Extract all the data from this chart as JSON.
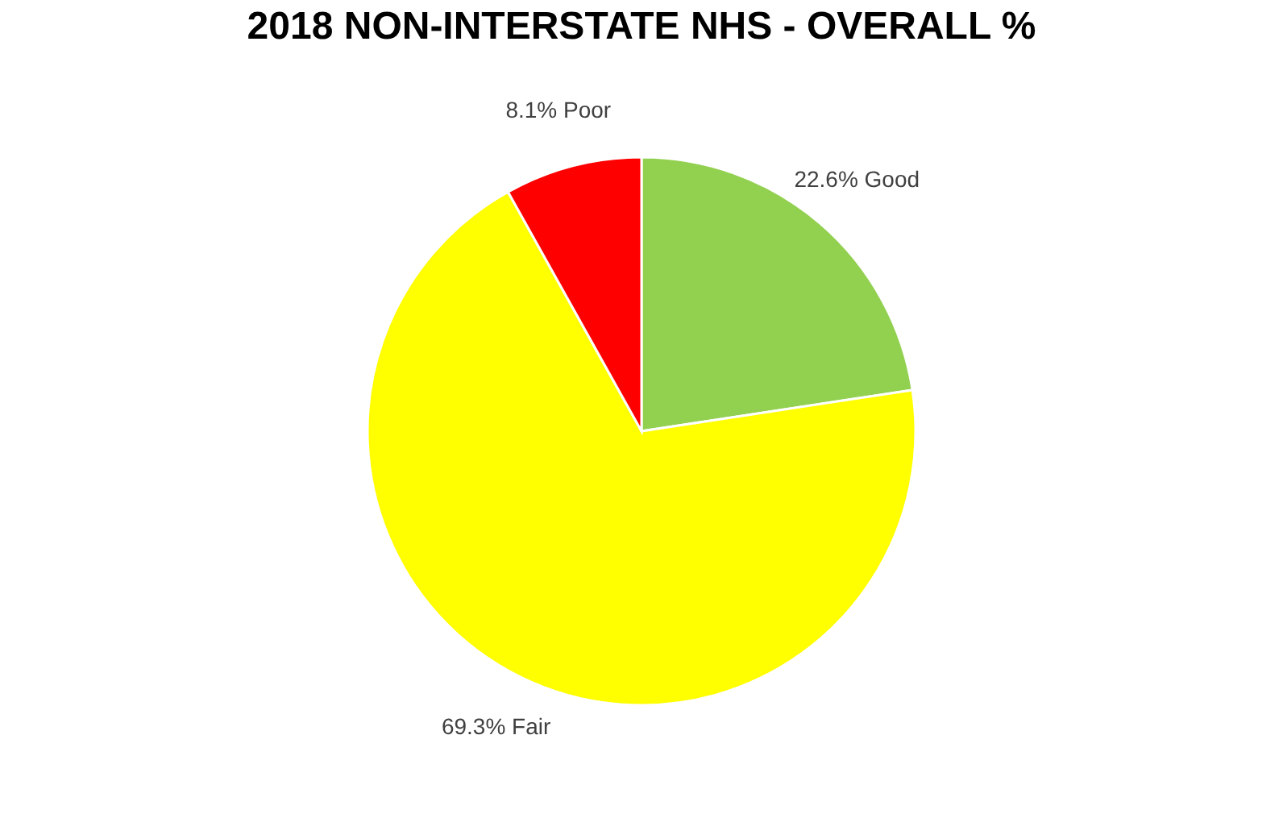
{
  "chart_data": {
    "type": "pie",
    "title": "2018 NON-INTERSTATE  NHS - OVERALL %",
    "categories": [
      "Good",
      "Fair",
      "Poor"
    ],
    "values": [
      22.6,
      69.3,
      8.1
    ],
    "colors": [
      "#92d050",
      "#ffff00",
      "#ff0000"
    ],
    "value_labels": [
      "22.6%",
      "69.3%",
      "8.1%"
    ],
    "legend": false
  }
}
